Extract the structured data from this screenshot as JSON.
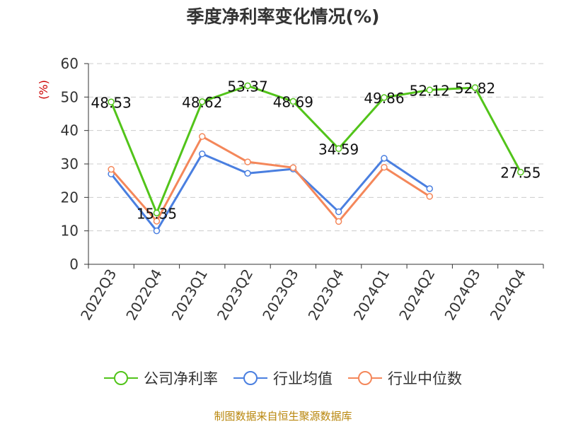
{
  "chart_data": {
    "type": "line",
    "title": "季度净利率变化情况(%)",
    "ylabel": "(%)",
    "xlabel": "",
    "ylim": [
      0,
      60
    ],
    "yticks": [
      0,
      10,
      20,
      30,
      40,
      50,
      60
    ],
    "categories": [
      "2022Q3",
      "2022Q4",
      "2023Q1",
      "2023Q2",
      "2023Q3",
      "2023Q4",
      "2024Q1",
      "2024Q2",
      "2024Q3",
      "2024Q4"
    ],
    "grid": true,
    "legend_position": "bottom",
    "series": [
      {
        "name": "公司净利率",
        "color": "#52c41a",
        "values": [
          48.53,
          15.35,
          48.62,
          53.37,
          48.69,
          34.59,
          49.86,
          52.12,
          52.82,
          27.55
        ],
        "labels": [
          "48.53",
          "15.35",
          "48.62",
          "53.37",
          "48.69",
          "34.59",
          "49.86",
          "52.12",
          "52.82",
          "27.55"
        ]
      },
      {
        "name": "行业均值",
        "color": "#4a7fe0",
        "values": [
          27.0,
          10.0,
          33.0,
          27.2,
          28.5,
          15.7,
          31.7,
          22.6,
          null,
          null
        ]
      },
      {
        "name": "行业中位数",
        "color": "#f4875a",
        "values": [
          28.4,
          12.9,
          38.2,
          30.6,
          28.9,
          12.8,
          29.0,
          20.3,
          null,
          null
        ]
      }
    ]
  },
  "source_text": "制图数据来自恒生聚源数据库"
}
